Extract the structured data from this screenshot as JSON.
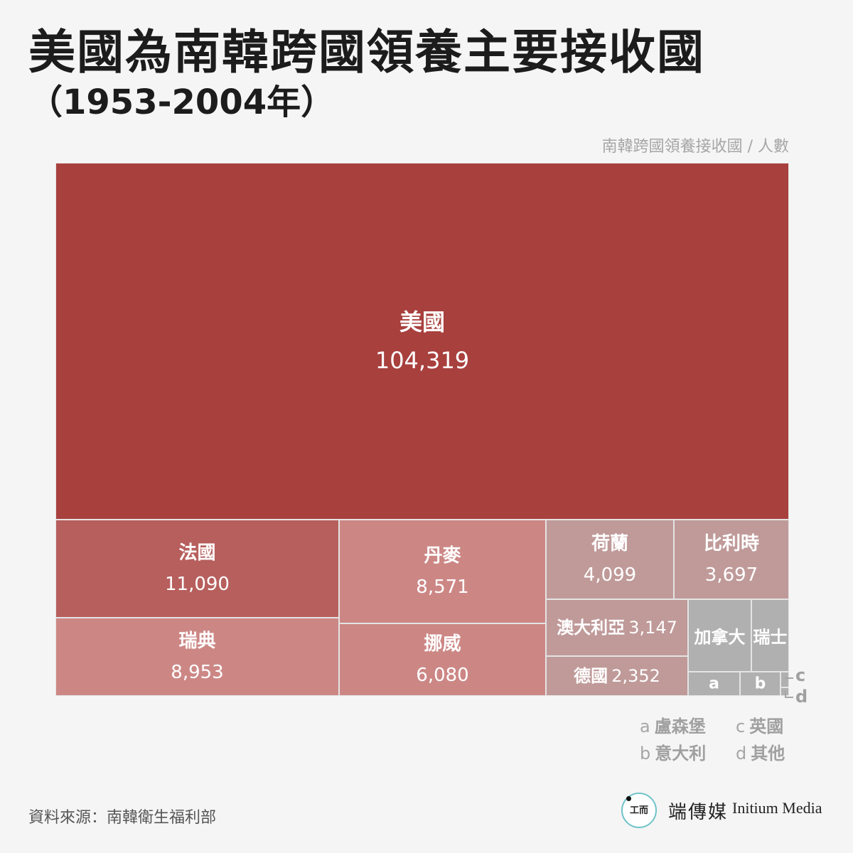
{
  "title": "美國為南韓跨國領養主要接收國",
  "subtitle": "（1953-2004年）",
  "unit_label": "南韓跨國領養接收國 / 人數",
  "chart_data": {
    "type": "treemap",
    "title": "美國為南韓跨國領養主要接收國",
    "subtitle": "（1953-2004年）",
    "value_label": "南韓跨國領養接收國 / 人數",
    "items": [
      {
        "name": "美國",
        "value": 104319,
        "display": "104,319",
        "color": "#a8403e"
      },
      {
        "name": "法國",
        "value": 11090,
        "display": "11,090",
        "color": "#b75f5d"
      },
      {
        "name": "瑞典",
        "value": 8953,
        "display": "8,953",
        "color": "#cc8785"
      },
      {
        "name": "丹麥",
        "value": 8571,
        "display": "8,571",
        "color": "#cc8785"
      },
      {
        "name": "挪威",
        "value": 6080,
        "display": "6,080",
        "color": "#cc8785"
      },
      {
        "name": "荷蘭",
        "value": 4099,
        "display": "4,099",
        "color": "#bf9a99"
      },
      {
        "name": "比利時",
        "value": 3697,
        "display": "3,697",
        "color": "#bf9a99"
      },
      {
        "name": "澳大利亞",
        "value": 3147,
        "display": "3,147",
        "color": "#bf9a99"
      },
      {
        "name": "德國",
        "value": 2352,
        "display": "2,352",
        "color": "#bf9a99"
      },
      {
        "name": "加拿大",
        "color": "#b0b0b0"
      },
      {
        "name": "瑞士",
        "color": "#b0b0b0"
      },
      {
        "key": "a",
        "name": "盧森堡",
        "color": "#b0b0b0"
      },
      {
        "key": "b",
        "name": "意大利",
        "color": "#b0b0b0"
      },
      {
        "key": "c",
        "name": "英國",
        "color": "#b0b0b0"
      },
      {
        "key": "d",
        "name": "其他",
        "color": "#b0b0b0"
      }
    ]
  },
  "legend": [
    {
      "letter": "a",
      "name": "盧森堡"
    },
    {
      "letter": "b",
      "name": "意大利"
    },
    {
      "letter": "c",
      "name": "英國"
    },
    {
      "letter": "d",
      "name": "其他"
    }
  ],
  "source": "資料來源：南韓衛生福利部",
  "brand": {
    "logo_glyph": "工而",
    "name_cn": "端傳媒",
    "name_en": "Initium Media"
  }
}
